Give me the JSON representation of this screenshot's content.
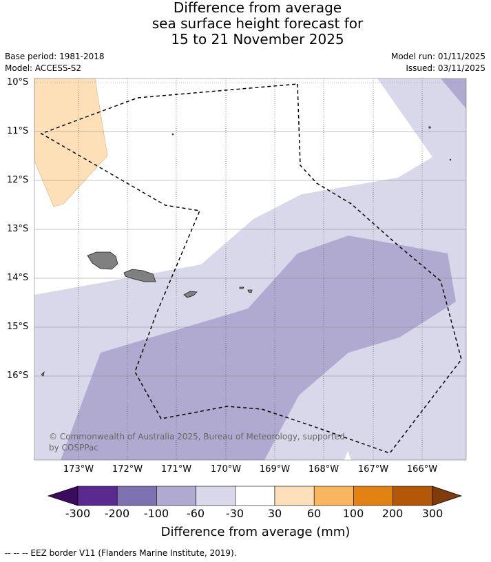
{
  "title": {
    "line1": "Difference from average",
    "line2": "sea surface height forecast for",
    "line3": "15 to 21 November 2025"
  },
  "meta": {
    "base_period": "Base period: 1981-2018",
    "model": "Model: ACCESS-S2",
    "model_run": "Model run: 01/11/2025",
    "issued": "Issued: 03/11/2025"
  },
  "map": {
    "longitude_labels": [
      "173°W",
      "172°W",
      "171°W",
      "170°W",
      "169°W",
      "168°W",
      "167°W",
      "166°W"
    ],
    "latitude_labels": [
      "10°S",
      "11°S",
      "12°S",
      "13°S",
      "14°S",
      "15°S",
      "16°S"
    ],
    "copyright_line1": "© Commonwealth of Australia 2025, Bureau of Meteorology, supported",
    "copyright_line2": "by COSPPac",
    "colors": {
      "land": "#808080",
      "neg_30_60": "#d8d8ea",
      "neg_60_100": "#b0aad0",
      "pos_30_60": "#fde0b8",
      "eez": "#000000"
    }
  },
  "colorbar": {
    "tick_labels": [
      "-300",
      "-200",
      "-100",
      "-60",
      "-30",
      "30",
      "60",
      "100",
      "200",
      "300"
    ],
    "title": "Difference from average (mm)",
    "colors": [
      "#3b0c5e",
      "#5a2a8e",
      "#7f72b0",
      "#b0aad0",
      "#d8d8ea",
      "#ffffff",
      "#fde0b8",
      "#f9b55f",
      "#e08214",
      "#b35806",
      "#7f3b08"
    ]
  },
  "footer": "--  --  -- EEZ border V11 (Flanders Marine Institute, 2019)."
}
